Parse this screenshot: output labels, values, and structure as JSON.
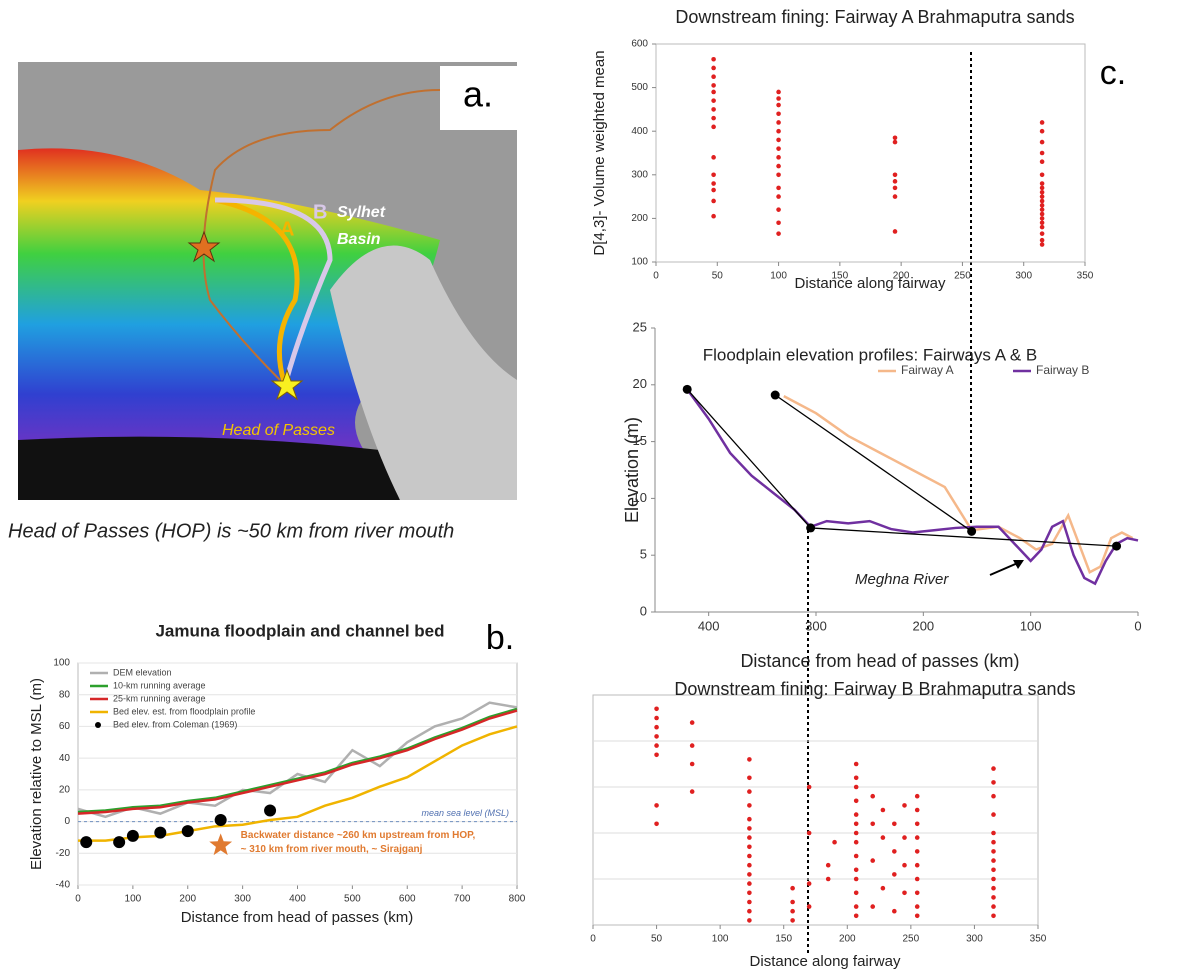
{
  "map": {
    "panel_label": "a.",
    "route_a": "A",
    "route_b": "B",
    "basin": [
      "Sylhet",
      "Basin"
    ],
    "hop": "Head of Passes",
    "caption": "Head of Passes (HOP) is ~50 km from river mouth"
  },
  "chart_data": [
    {
      "type": "scatter",
      "title": "Downstream fining: Fairway A Brahmaputra sands",
      "panel_label": "c.",
      "x_label": "Distance along fairway",
      "y_label": "D[4,3]- Volume weighted mean",
      "color": "#e02020",
      "xlim": [
        0,
        350
      ],
      "xticks": [
        0,
        50,
        100,
        150,
        200,
        250,
        300,
        350
      ],
      "ylim": [
        100,
        600
      ],
      "yticks": [
        100,
        200,
        300,
        400,
        500,
        600
      ],
      "x": [
        47,
        47,
        47,
        47,
        47,
        47,
        47,
        47,
        47,
        47,
        47,
        47,
        47,
        47,
        47,
        100,
        100,
        100,
        100,
        100,
        100,
        100,
        100,
        100,
        100,
        100,
        100,
        100,
        100,
        100,
        100,
        195,
        195,
        195,
        195,
        195,
        195,
        195,
        315,
        315,
        315,
        315,
        315,
        315,
        315,
        315,
        315,
        315,
        315,
        315,
        315,
        315,
        315,
        315,
        315,
        315,
        315,
        315
      ],
      "y": [
        565,
        545,
        525,
        505,
        490,
        470,
        450,
        430,
        410,
        340,
        300,
        280,
        265,
        240,
        205,
        490,
        475,
        460,
        440,
        420,
        400,
        380,
        360,
        340,
        320,
        300,
        270,
        250,
        220,
        190,
        165,
        385,
        375,
        300,
        285,
        270,
        250,
        170,
        420,
        400,
        375,
        350,
        330,
        300,
        280,
        270,
        260,
        250,
        240,
        230,
        220,
        210,
        200,
        190,
        180,
        165,
        150,
        140
      ]
    },
    {
      "type": "line",
      "title": "Floodplain elevation profiles: Fairways A & B",
      "x_label": "Distance  from head of passes (km)",
      "y_label": "Elevation (m)",
      "xlim": [
        450,
        0
      ],
      "xticks": [
        400,
        300,
        200,
        100,
        0
      ],
      "ylim": [
        0,
        25
      ],
      "yticks": [
        0,
        5,
        10,
        15,
        20,
        25
      ],
      "legend": "top-right",
      "annotation": "Meghna River",
      "series": [
        {
          "name": "Fairway A",
          "color": "#f5b88a",
          "x": [
            330,
            300,
            270,
            240,
            210,
            180,
            155,
            130,
            110,
            95,
            80,
            65,
            55,
            45,
            35,
            25,
            15,
            5
          ],
          "values": [
            19,
            17.5,
            15.5,
            14,
            12.5,
            11,
            7.2,
            7.5,
            6.5,
            5.5,
            6,
            8.5,
            6,
            3.5,
            4,
            6.5,
            7,
            6.5
          ]
        },
        {
          "name": "Fairway B",
          "color": "#7030a0",
          "x": [
            420,
            400,
            380,
            360,
            340,
            320,
            305,
            290,
            270,
            250,
            230,
            210,
            190,
            170,
            150,
            130,
            110,
            100,
            90,
            80,
            70,
            60,
            50,
            40,
            30,
            20,
            10,
            0
          ],
          "values": [
            19.6,
            17,
            14,
            12,
            10.5,
            9,
            7.5,
            8,
            7.8,
            8,
            7.3,
            7,
            7.2,
            7.4,
            7.5,
            7.5,
            5.5,
            4.5,
            5.5,
            7.5,
            8,
            5,
            3,
            2.5,
            4.5,
            6,
            6.5,
            6.3
          ]
        },
        {
          "color": "#000000",
          "markers": true,
          "x": [
            420,
            305,
            20
          ],
          "values": [
            19.6,
            7.4,
            5.8
          ]
        },
        {
          "color": "#000000",
          "markers": true,
          "x": [
            338,
            155
          ],
          "values": [
            19.1,
            7.1
          ]
        }
      ]
    },
    {
      "type": "scatter",
      "title": "Downstream fining: Fairway B Brahmaputra sands",
      "x_label": "Distance along fairway",
      "color": "#e02020",
      "xlim": [
        0,
        350
      ],
      "xticks": [
        0,
        50,
        100,
        150,
        200,
        250,
        300,
        350
      ],
      "ylim": [
        0,
        5
      ],
      "x": [
        50,
        50,
        50,
        50,
        50,
        50,
        50,
        50,
        78,
        78,
        78,
        78,
        123,
        123,
        123,
        123,
        123,
        123,
        123,
        123,
        123,
        123,
        123,
        123,
        123,
        123,
        123,
        123,
        157,
        157,
        157,
        157,
        170,
        170,
        170,
        170,
        185,
        185,
        190,
        207,
        207,
        207,
        207,
        207,
        207,
        207,
        207,
        207,
        207,
        207,
        207,
        207,
        207,
        220,
        220,
        220,
        220,
        228,
        228,
        228,
        237,
        237,
        237,
        237,
        245,
        245,
        245,
        245,
        255,
        255,
        255,
        255,
        255,
        255,
        255,
        255,
        255,
        255,
        315,
        315,
        315,
        315,
        315,
        315,
        315,
        315,
        315,
        315,
        315,
        315,
        315,
        315
      ],
      "y": [
        4.7,
        4.5,
        4.3,
        4.1,
        3.9,
        3.7,
        2.6,
        2.2,
        4.4,
        3.9,
        3.5,
        2.9,
        3.6,
        3.2,
        2.9,
        2.6,
        2.3,
        2.1,
        1.9,
        1.7,
        1.5,
        1.3,
        1.1,
        0.9,
        0.7,
        0.5,
        0.3,
        0.1,
        0.8,
        0.5,
        0.3,
        0.1,
        3.0,
        2.0,
        0.9,
        0.4,
        1.3,
        1.0,
        1.8,
        3.5,
        3.2,
        3.0,
        2.7,
        2.4,
        2.2,
        2.0,
        1.8,
        1.5,
        1.2,
        1.0,
        0.7,
        0.4,
        0.2,
        2.8,
        2.2,
        1.4,
        0.4,
        2.5,
        1.9,
        0.8,
        2.2,
        1.6,
        1.1,
        0.3,
        2.6,
        1.9,
        1.3,
        0.7,
        2.8,
        2.5,
        2.2,
        1.9,
        1.6,
        1.3,
        1.0,
        0.7,
        0.4,
        0.2,
        3.4,
        3.1,
        2.8,
        2.4,
        2.0,
        1.8,
        1.6,
        1.4,
        1.2,
        1.0,
        0.8,
        0.6,
        0.4,
        0.2
      ]
    },
    {
      "type": "line",
      "title": "Jamuna floodplain and channel bed",
      "panel_label": "b.",
      "x_label": "Distance from head of passes (km)",
      "y_label": "Elevation relative to MSL (m)",
      "xlim": [
        0,
        800
      ],
      "xticks": [
        0,
        100,
        200,
        300,
        400,
        500,
        600,
        700,
        800
      ],
      "ylim": [
        -40,
        100
      ],
      "yticks": [
        -40,
        -20,
        0,
        20,
        40,
        60,
        80,
        100
      ],
      "legend": "top-left",
      "msl_label": "mean sea level (MSL)",
      "note": [
        "Backwater distance ~260 km upstream from HOP,",
        "~ 310 km from river mouth, ~ Sirajganj"
      ],
      "star": {
        "x": 260,
        "y": -15
      },
      "x": [
        0,
        50,
        100,
        150,
        200,
        250,
        300,
        350,
        400,
        450,
        500,
        550,
        600,
        650,
        700,
        750,
        800
      ],
      "series": [
        {
          "name": "DEM elevation",
          "color": "#b0b0b0",
          "values": [
            8,
            3,
            9,
            5,
            12,
            10,
            20,
            18,
            30,
            25,
            45,
            35,
            50,
            60,
            65,
            75,
            72
          ]
        },
        {
          "name": "10-km running average",
          "color": "#2ca02c",
          "values": [
            6,
            7,
            9,
            10,
            13,
            15,
            19,
            23,
            27,
            31,
            37,
            41,
            46,
            53,
            59,
            66,
            71
          ]
        },
        {
          "name": "25-km running average",
          "color": "#d62728",
          "values": [
            5,
            6,
            8,
            9,
            12,
            14,
            18,
            22,
            26,
            30,
            36,
            40,
            45,
            52,
            58,
            65,
            70
          ]
        },
        {
          "name": "Bed elev. est. from floodplain profile",
          "color": "#f0b400",
          "values": [
            -12,
            -12,
            -10,
            -9,
            -6,
            -3,
            -2,
            1,
            3,
            10,
            15,
            22,
            28,
            38,
            48,
            55,
            60
          ]
        },
        {
          "name": "Bed elev. from Coleman (1969)",
          "color": "#000000",
          "markers": true,
          "nolines": true,
          "x": [
            15,
            75,
            100,
            150,
            200,
            260,
            350
          ],
          "values": [
            -13,
            -13,
            -9,
            -7,
            -6,
            1,
            7
          ]
        }
      ]
    }
  ]
}
